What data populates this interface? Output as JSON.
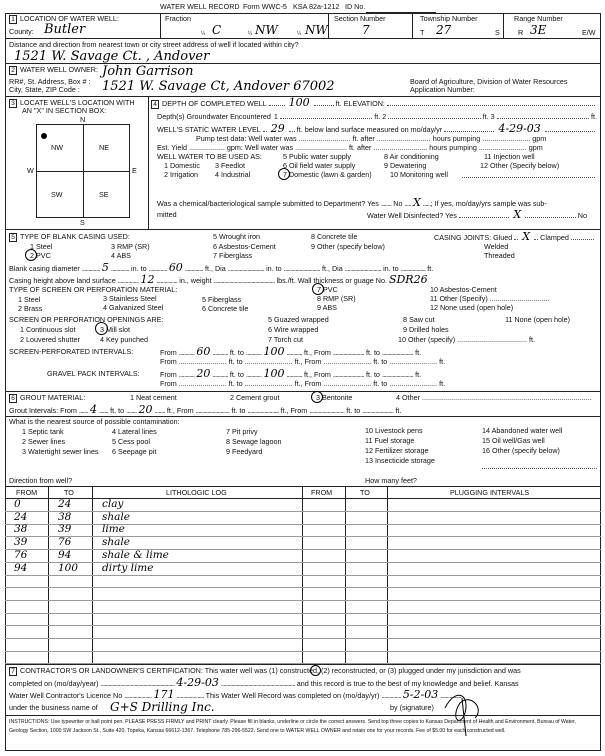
{
  "header": {
    "title": "WATER WELL RECORD",
    "form": "Form WWC-5",
    "ksa": "KSA 82a-1212",
    "id_label": "ID No."
  },
  "s1": {
    "num": "1",
    "label": "LOCATION OF WATER WELL:",
    "county_label": "County:",
    "county": "Butler",
    "fraction_label": "Fraction",
    "q": "¼",
    "frac1": "C",
    "frac2": "NW",
    "frac3": "NW",
    "section_label": "Section Number",
    "section": "7",
    "township_label": "Township Number",
    "t": "T",
    "township": "27",
    "s": "S",
    "range_label": "Range Number",
    "r": "R",
    "range": "3E",
    "ew": "E/W",
    "distance_label": "Distance and direction from nearest town or city street address of well if located within city?",
    "distance": "1521 W. Savage Ct. , Andover"
  },
  "s2": {
    "num": "2",
    "label": "WATER WELL OWNER:",
    "owner": "John Garrison",
    "addr_label1": "RR#, St. Address, Box # :",
    "addr_label2": "City, State, ZIP Code      :",
    "address": "1521 W. Savage Ct, Andover 67002",
    "board1": "Board of Agriculture, Division of Water Resources",
    "board2": "Application Number:"
  },
  "s3": {
    "num": "3",
    "label1": "LOCATE WELL'S LOCATION WITH",
    "label2": "AN \"X\" IN SECTION BOX:",
    "n": "N",
    "s": "S",
    "e": "E",
    "w": "W",
    "nw": "NW",
    "ne": "NE",
    "sw": "SW",
    "se": "SE"
  },
  "s4": {
    "num": "4",
    "depth_label": "DEPTH OF COMPLETED WELL",
    "depth": "100",
    "elev_label": "ft. ELEVATION:",
    "gw_label": "Depth(s) Groundwater Encountered",
    "gw1": "1",
    "gw2": "ft. 2",
    "gw3": "ft. 3",
    "ft": "ft.",
    "static_label": "WELL'S STATIC WATER LEVEL",
    "static": "29",
    "static_rest": "ft. below land surface measured on mo/day/yr",
    "static_date": "4-29-03",
    "pump_line": "Pump test data:  Well water was .......................... ft. after ........................... hours pumping ........................ gpm",
    "yield_line": "Est. Yield .................. gpm:  Well water was .......................... ft. after ........................... hours pumping ........................ gpm",
    "use_label": "WELL WATER TO BE USED AS:",
    "uses": [
      "1 Domestic",
      "2 Irrigation",
      "3 Feedlot",
      "4 Industrial",
      "5 Public water supply",
      "6 Oil field water supply",
      "7 Domestic (lawn & garden)",
      "8 Air conditioning",
      "9 Dewatering",
      "10 Monitoring well",
      "11 Injection well",
      "12 Other (Specify below)"
    ],
    "sample_line": "Was a chemical/bacteriological sample submitted to Department? Yes ........ No ...........; If yes, mo/day/yrs sample was sub-",
    "submitted": "mitted",
    "disinfected": "Water Well Disinfected? Yes",
    "no": "No",
    "mark": "X"
  },
  "s5": {
    "num": "5",
    "label": "TYPE OF BLANK CASING USED:",
    "casing": [
      "1 Steel",
      "2 PVC",
      "3 RMP (SR)",
      "4 ABS",
      "5 Wrought iron",
      "6 Asbestos-Cement",
      "7 Fiberglass",
      "8 Concrete tile",
      "9 Other (specify below)"
    ],
    "joints_label": "CASING JOINTS: Glued",
    "clamped": "Clamped",
    "welded": "Welded",
    "threaded": "Threaded",
    "mark": "X",
    "dia_line": "Blank casing diameter ............................ in. to ............................ ft., Dia ............................ in. to ............................ ft., Dia ............................ in. to ................... ft.",
    "dia": "5",
    "dia_to": "60",
    "height_line": "Casing height above land surface ................................ in., weight ............................................... lbs./ft. Wall thickness or guage No.",
    "height": "12",
    "gauge": "SDR26",
    "screen_label": "TYPE OF SCREEN OR PERFORATION MATERIAL:",
    "screen": [
      "1 Steel",
      "2 Brass",
      "3 Stainless Steel",
      "4 Galvanized Steel",
      "5 Fiberglass",
      "6 Concrete tile",
      "7 PVC",
      "8 RMP (SR)",
      "9 ABS",
      "10 Asbestos-Cement",
      "11 Other (Specify) ..............................",
      "12 None used (open hole)"
    ],
    "open_label": "SCREEN OR PERFORATION OPENINGS ARE:",
    "openings": [
      "1 Continuous slot",
      "2 Louvered shutter",
      "3 Mill slot",
      "4 Key punched",
      "5 Guazed wrapped",
      "6 Wire wrapped",
      "7 Torch cut",
      "8 Saw cut",
      "9 Drilled holes",
      "10 Other (specify) ................................... ft.",
      "11 None (open hole)"
    ],
    "sp_label": "SCREEN-PERFORATED INTERVALS:",
    "gp_label": "GRAVEL PACK INTERVALS:",
    "int_line": "From ........................ ft. to ........................ ft., From ........................ ft. to ........................ ft.",
    "sp_from": "60",
    "sp_to": "100",
    "gp_from": "20",
    "gp_to": "100"
  },
  "s6": {
    "num": "6",
    "label": "GROUT MATERIAL:",
    "grout": [
      "1 Neat cement",
      "2 Cement grout",
      "3 Bentonite",
      "4 Other ....................................................................................."
    ],
    "int_line": "Grout Intervals:  From .............. ft. to ................ ft., From .......................... ft. to ........................ ft., From ........................... ft. to ........................ ft.",
    "from": "4",
    "to": "20",
    "contam_label": "What is the nearest source of possible contamination:",
    "contam": [
      "1 Septic tank",
      "2 Sewer lines",
      "3 Watertight sewer lines",
      "4 Lateral lines",
      "5 Cess pool",
      "6 Seepage pit",
      "7 Pit privy",
      "8 Sewage lagoon",
      "9 Feedyard",
      "10 Livestock pens",
      "11 Fuel storage",
      "12 Fertilizer storage",
      "13 Insecticide storage",
      "14 Abandoned water well",
      "15 Oil well/Gas well",
      "16 Other (specify below)"
    ],
    "direction": "Direction from well?",
    "howmany": "How many feet?"
  },
  "log": {
    "headers": [
      "FROM",
      "TO",
      "LITHOLOGIC LOG",
      "FROM",
      "TO",
      "PLUGGING INTERVALS"
    ],
    "rows": [
      {
        "from": "0",
        "to": "24",
        "desc": "clay"
      },
      {
        "from": "24",
        "to": "38",
        "desc": "shale"
      },
      {
        "from": "38",
        "to": "39",
        "desc": "lime"
      },
      {
        "from": "39",
        "to": "76",
        "desc": "shale"
      },
      {
        "from": "76",
        "to": "94",
        "desc": "shale & lime"
      },
      {
        "from": "94",
        "to": "100",
        "desc": "dirty lime"
      }
    ]
  },
  "s7": {
    "num": "7",
    "line1": "CONTRACTOR'S OR LANDOWNER'S CERTIFICATION: This water well was (1) constructed, (2) reconstructed, or (3) plugged under my jurisdiction and was",
    "line2a": "completed on (mo/day/year) .................................................................................................................. and this record is true to the best of my knowledge and belief. Kansas",
    "completed": "4-29-03",
    "line3": "Water Well Contractor's Licence No .......................................... This Water Well Record was completed on (mo/day/yr) ...............................",
    "licence": "171",
    "record_date": "5-2-03",
    "line4": "under the business name of",
    "business": "G+S Drilling Inc.",
    "sig": "by (signature)",
    "instructions": "INSTRUCTIONS: Use typewriter or ball point pen. PLEASE PRESS FIRMLY and PRINT clearly. Please fill in blanks, underline or circle the correct answers. Send top three copies to Kansas Department of Health and Environment, Bureau of Water, Geology Section, 1000 SW Jackson St., Suite 420, Topeka, Kansas 66612-1367. Telephone 785-296-5522. Send one to WATER WELL OWNER and retain one for your records. Fee of $5.00 for each constructed well."
  }
}
